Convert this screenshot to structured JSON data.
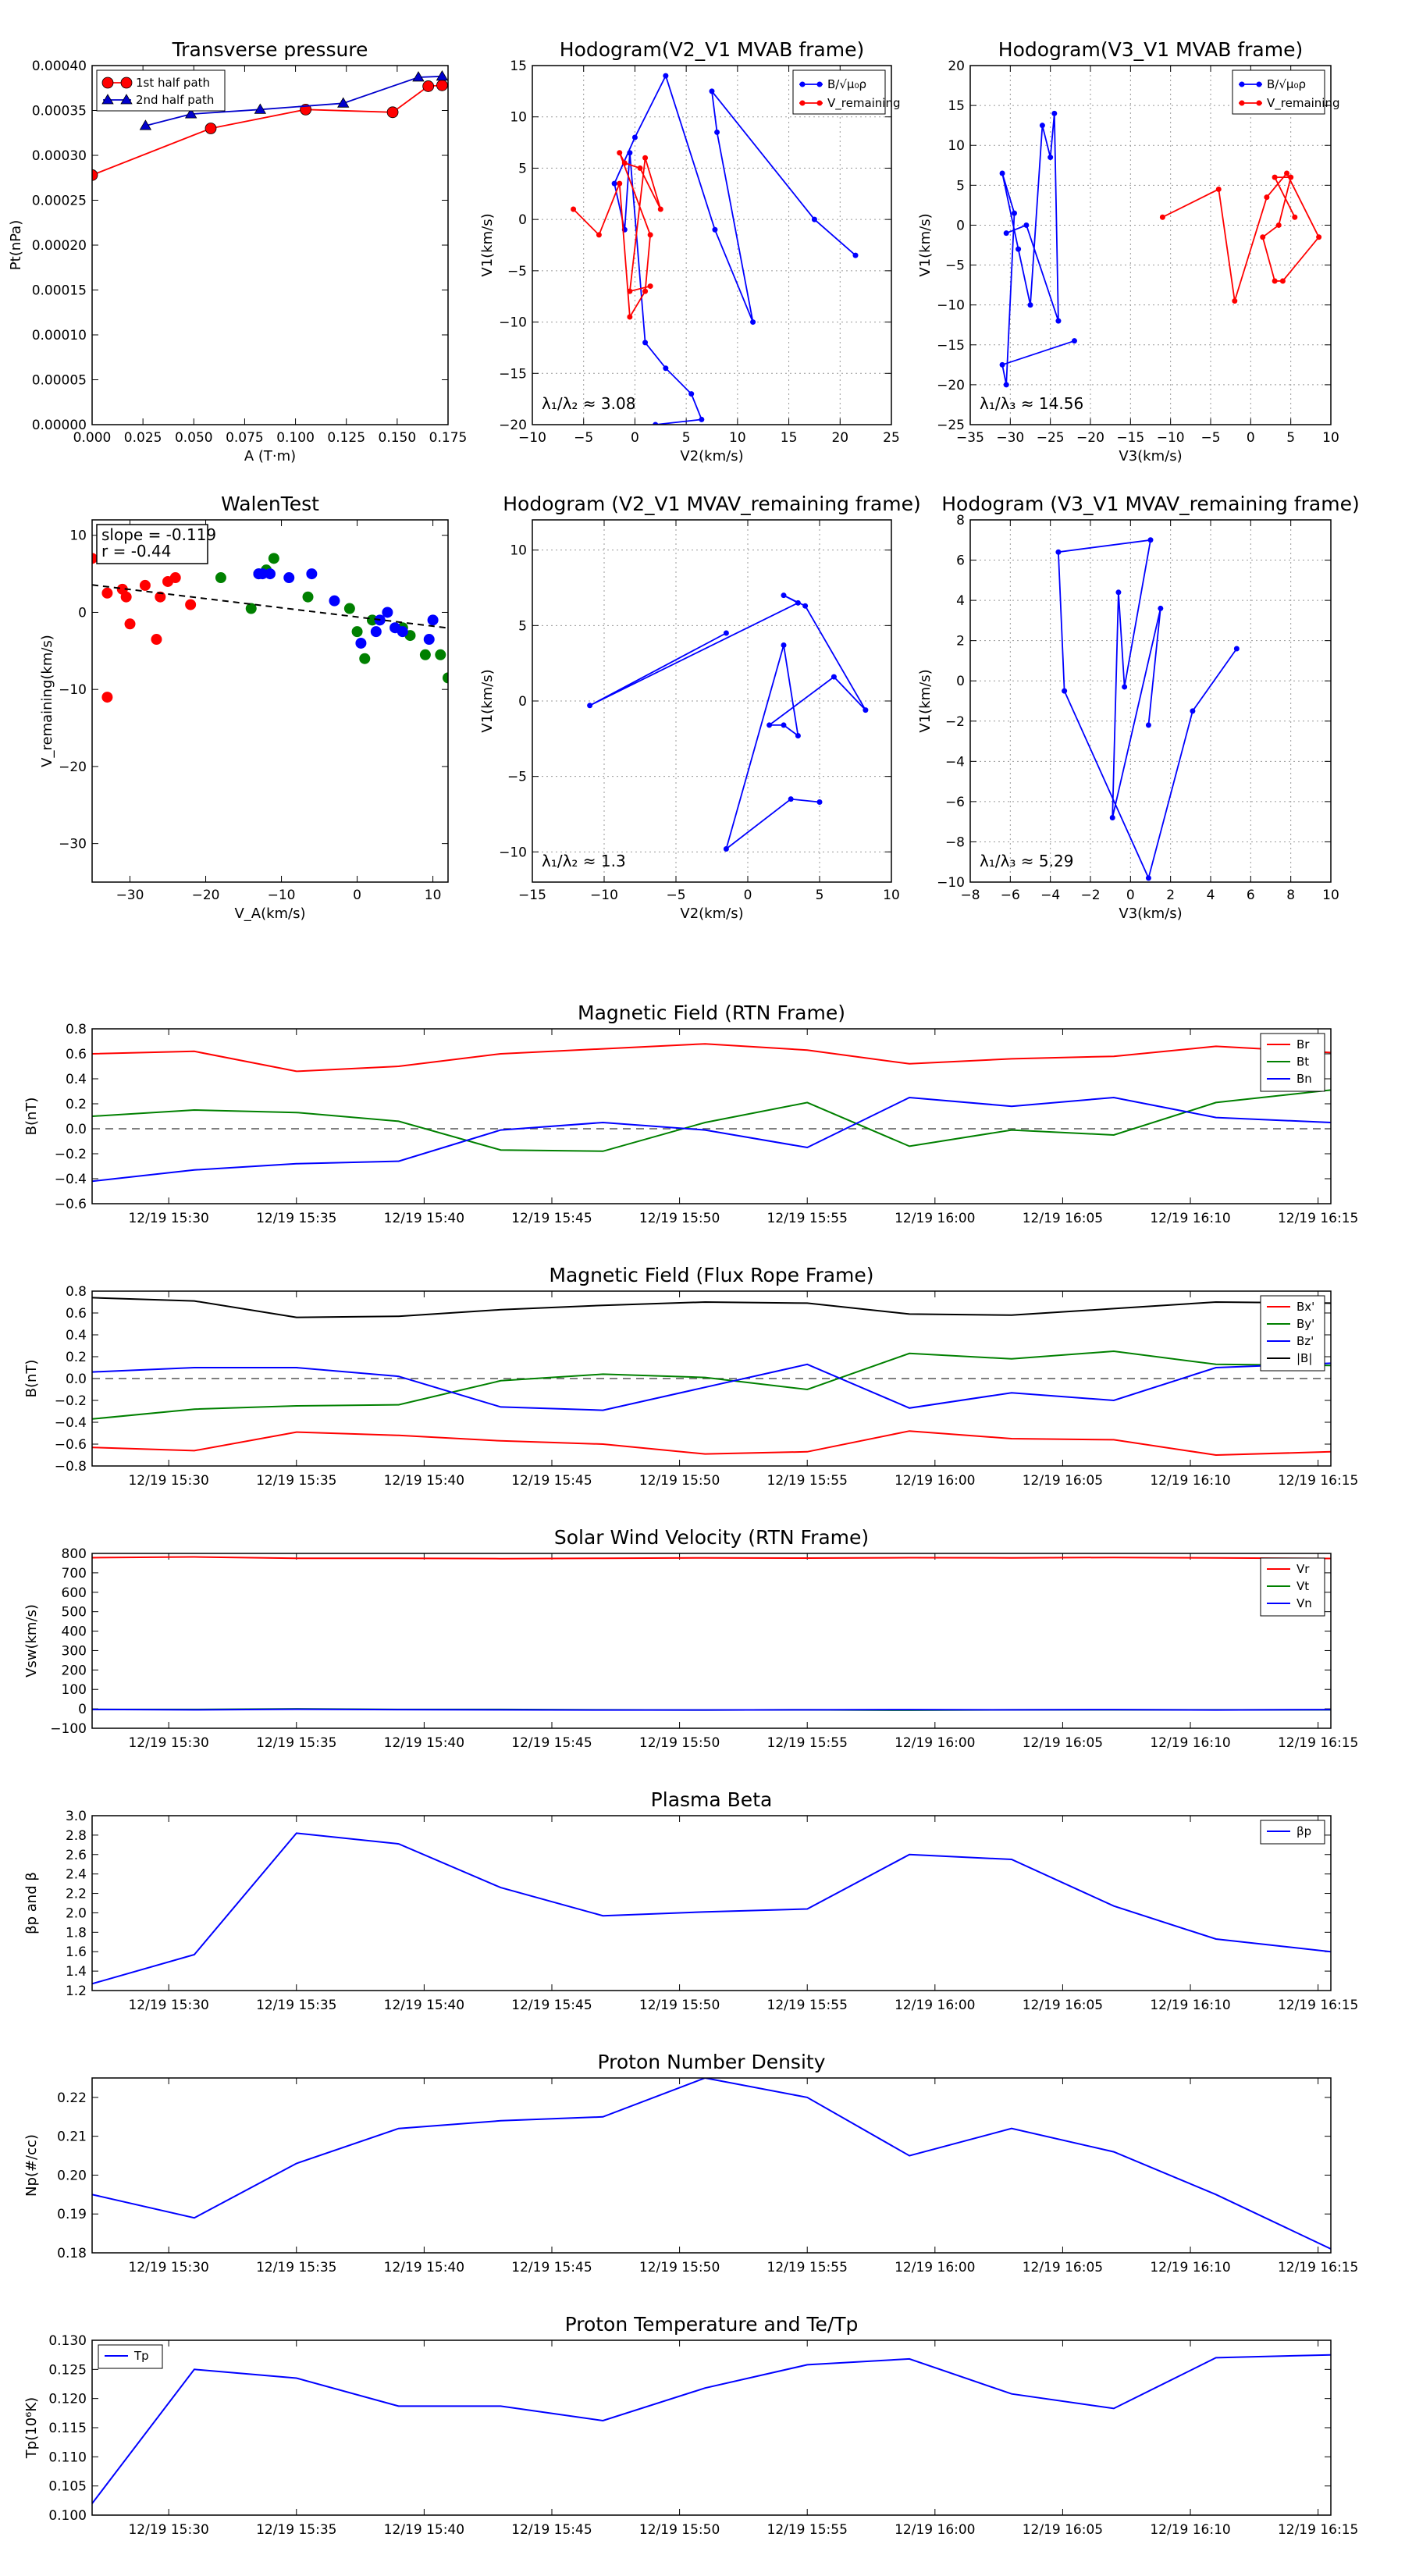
{
  "chart_data": [
    {
      "id": "tp",
      "type": "line",
      "title": "Transverse pressure",
      "xlabel": "A (T·m)",
      "ylabel": "Pt(nPa)",
      "xlim": [
        0.0,
        0.18
      ],
      "ylim": [
        0.0,
        0.0004
      ],
      "xticks": [
        "0.000",
        "0.025",
        "0.050",
        "0.075",
        "0.100",
        "0.125",
        "0.150",
        "0.175"
      ],
      "yticks": [
        "0.00000",
        "0.00005",
        "0.00010",
        "0.00015",
        "0.00020",
        "0.00025",
        "0.00030",
        "0.00035",
        "0.00040"
      ],
      "legend": "top-left",
      "grid": false,
      "series": [
        {
          "name": "1st half path",
          "color": "#ff0000",
          "marker": "circle",
          "x": [
            0.0,
            0.06,
            0.108,
            0.152,
            0.17,
            0.177
          ],
          "y": [
            0.000278,
            0.00033,
            0.000351,
            0.000348,
            0.000377,
            0.000378
          ]
        },
        {
          "name": "2nd half path",
          "color": "#0000cc",
          "marker": "triangle",
          "x": [
            0.027,
            0.05,
            0.085,
            0.127,
            0.165,
            0.177
          ],
          "y": [
            0.000333,
            0.000346,
            0.000351,
            0.000358,
            0.000387,
            0.000388
          ]
        }
      ]
    },
    {
      "id": "h1",
      "type": "line",
      "title": "Hodogram(V2_V1 MVAB frame)",
      "xlabel": "V2(km/s)",
      "ylabel": "V1(km/s)",
      "xlim": [
        -10,
        25
      ],
      "ylim": [
        -20,
        15
      ],
      "xticks": [
        "−10",
        "−5",
        "0",
        "5",
        "10",
        "15",
        "20",
        "25"
      ],
      "yticks": [
        "−20",
        "−15",
        "−10",
        "−5",
        "0",
        "5",
        "10",
        "15"
      ],
      "legend": "top-right",
      "grid": true,
      "annotation": "λ₁/λ₂ ≈ 3.08",
      "series": [
        {
          "name": "B/√μ₀ρ",
          "color": "#0000ff",
          "x": [
            21.5,
            17.5,
            7.5,
            8,
            11.5,
            7.8,
            3,
            0,
            -2,
            -1,
            -0.5,
            1,
            3,
            5.5,
            6.5,
            2
          ],
          "y": [
            -3.5,
            0,
            12.5,
            8.5,
            -10,
            -1,
            14,
            8,
            3.5,
            -1,
            6.5,
            -12,
            -14.5,
            -17,
            -19.5,
            -20
          ]
        },
        {
          "name": "V_remaining",
          "color": "#ff0000",
          "x": [
            -6,
            -3.5,
            -1.5,
            -0.5,
            1,
            1.5,
            -1.5,
            -1,
            0.5,
            2.5,
            1,
            -0.5,
            1.5
          ],
          "y": [
            1,
            -1.5,
            3.5,
            -9.5,
            -7,
            -1.5,
            6.5,
            5.5,
            5,
            1,
            6,
            -7,
            -6.5
          ]
        }
      ]
    },
    {
      "id": "h2",
      "type": "line",
      "title": "Hodogram(V3_V1 MVAB frame)",
      "xlabel": "V3(km/s)",
      "ylabel": "V1(km/s)",
      "xlim": [
        -35,
        10
      ],
      "ylim": [
        -25,
        20
      ],
      "xticks": [
        "−35",
        "−30",
        "−25",
        "−20",
        "−15",
        "−10",
        "−5",
        "0",
        "5",
        "10"
      ],
      "yticks": [
        "−25",
        "−20",
        "−15",
        "−10",
        "−5",
        "0",
        "5",
        "10",
        "15",
        "20"
      ],
      "legend": "top-right",
      "grid": true,
      "annotation": "λ₁/λ₃ ≈ 14.56",
      "series": [
        {
          "name": "B/√μ₀ρ",
          "color": "#0000ff",
          "x": [
            -22,
            -31,
            -30.5,
            -29.5,
            -31,
            -29,
            -27.5,
            -26,
            -25,
            -24.5,
            -24,
            -28,
            -30.5
          ],
          "y": [
            -14.5,
            -17.5,
            -20,
            1.5,
            6.5,
            -3,
            -10,
            12.5,
            8.5,
            14,
            -12,
            0,
            -1
          ]
        },
        {
          "name": "V_remaining",
          "color": "#ff0000",
          "x": [
            -11,
            -4,
            -2,
            2,
            4.5,
            8.5,
            4,
            3,
            1.5,
            3.5,
            5,
            3,
            5.5
          ],
          "y": [
            1,
            4.5,
            -9.5,
            3.5,
            6.5,
            -1.5,
            -7,
            -7,
            -1.5,
            0,
            6,
            6,
            1
          ]
        }
      ]
    },
    {
      "id": "walen",
      "type": "scatter",
      "title": "WalenTest",
      "xlabel": "V_A(km/s)",
      "ylabel": "V_remaining(km/s)",
      "xlim": [
        -35,
        12
      ],
      "ylim": [
        -35,
        12
      ],
      "xticks": [
        "−30",
        "−20",
        "−10",
        "0",
        "10"
      ],
      "xtick_vals": [
        -30,
        -20,
        -10,
        0,
        10
      ],
      "yticks": [
        "−30",
        "−20",
        "−10",
        "0",
        "10"
      ],
      "ytick_vals": [
        -30,
        -20,
        -10,
        0,
        10
      ],
      "grid": false,
      "textbox": [
        "slope = -0.119",
        "r = -0.44"
      ],
      "fit": {
        "slope": -0.119,
        "intercept": -0.6
      },
      "groups": [
        {
          "color": "#ff0000",
          "x": [
            -35,
            -33,
            -31,
            -30.5,
            -28,
            -26.5,
            -26,
            -25,
            -24,
            -22,
            -33,
            -30
          ],
          "y": [
            7,
            2.5,
            3,
            2,
            3.5,
            -3.5,
            2,
            4,
            4.5,
            1,
            -11,
            -1.5
          ]
        },
        {
          "color": "#008000",
          "x": [
            -13,
            -12,
            -11,
            -14,
            -6.5,
            -1,
            0,
            1,
            2,
            6,
            7,
            9,
            11,
            -18,
            12
          ],
          "y": [
            5,
            5.5,
            7,
            0.5,
            2,
            0.5,
            -2.5,
            -6,
            -1,
            -2,
            -3,
            -5.5,
            -5.5,
            4.5,
            -8.5
          ]
        },
        {
          "color": "#0000ff",
          "x": [
            -13,
            -12.5,
            -11.5,
            -9,
            -6,
            -3,
            0.5,
            2.5,
            3,
            4,
            5,
            6,
            9.5,
            10
          ],
          "y": [
            5,
            5,
            5,
            4.5,
            5,
            1.5,
            -4,
            -2.5,
            -1,
            0,
            -2,
            -2.5,
            -3.5,
            -1
          ]
        }
      ]
    },
    {
      "id": "h3",
      "type": "line",
      "title": "Hodogram (V2_V1 MVAV_remaining frame)",
      "xlabel": "V2(km/s)",
      "ylabel": "V1(km/s)",
      "xlim": [
        -15,
        10
      ],
      "ylim": [
        -12,
        12
      ],
      "xticks": [
        "−15",
        "−10",
        "−5",
        "0",
        "5",
        "10"
      ],
      "xtick_vals": [
        -15,
        -10,
        -5,
        0,
        5,
        10
      ],
      "yticks": [
        "−10",
        "−5",
        "0",
        "5",
        "10"
      ],
      "ytick_vals": [
        -10,
        -5,
        0,
        5,
        10
      ],
      "grid": true,
      "annotation": "λ₁/λ₂ ≈ 1.3",
      "series": [
        {
          "color": "#0000ff",
          "x": [
            -1.5,
            -11,
            3.5,
            2.5,
            4.0,
            8.2,
            6,
            1.5,
            2.5,
            3.5,
            2.5,
            -1.5,
            3.0,
            5.0
          ],
          "y": [
            4.5,
            -0.3,
            6.5,
            7.0,
            6.3,
            -0.6,
            1.6,
            -1.6,
            -1.6,
            -2.3,
            3.7,
            -9.8,
            -6.5,
            -6.7
          ]
        }
      ]
    },
    {
      "id": "h4",
      "type": "line",
      "title": "Hodogram (V3_V1 MVAV_remaining frame)",
      "xlabel": "V3(km/s)",
      "ylabel": "V1(km/s)",
      "xlim": [
        -8,
        10
      ],
      "ylim": [
        -10,
        8
      ],
      "xticks": [
        "−8",
        "−6",
        "−4",
        "−2",
        "0",
        "2",
        "4",
        "6",
        "8",
        "10"
      ],
      "xtick_vals": [
        -8,
        -6,
        -4,
        -2,
        0,
        2,
        4,
        6,
        8,
        10
      ],
      "yticks": [
        "−10",
        "−8",
        "−6",
        "−4",
        "−2",
        "0",
        "2",
        "4",
        "6",
        "8"
      ],
      "ytick_vals": [
        -10,
        -8,
        -6,
        -4,
        -2,
        0,
        2,
        4,
        6,
        8
      ],
      "grid": true,
      "annotation": "λ₁/λ₃ ≈ 5.29",
      "series": [
        {
          "color": "#0000ff",
          "x": [
            5.3,
            3.1,
            0.9,
            -3.3,
            -3.6,
            1.0,
            -0.3,
            -0.6,
            -0.9,
            1.5,
            0.9
          ],
          "y": [
            1.6,
            -1.5,
            -9.8,
            -0.5,
            6.4,
            7.0,
            -0.3,
            4.4,
            -6.8,
            3.6,
            -2.2
          ]
        }
      ]
    }
  ],
  "time_axis": {
    "ticks": [
      "12/19 15:30",
      "12/19 15:35",
      "12/19 15:40",
      "12/19 15:45",
      "12/19 15:50",
      "12/19 15:55",
      "12/19 16:00",
      "12/19 16:05",
      "12/19 16:10",
      "12/19 16:15"
    ],
    "tick_minutes": [
      3,
      8,
      13,
      18,
      23,
      28,
      33,
      38,
      43,
      48
    ],
    "sample_minutes": [
      0,
      4,
      8,
      12,
      16,
      20,
      24,
      28,
      32,
      36,
      40,
      44,
      48.5
    ],
    "range_minutes": [
      0,
      48.5
    ],
    "origin_label": "12/19 15:27"
  },
  "time_charts": [
    {
      "id": "brtn",
      "title": "Magnetic Field (RTN Frame)",
      "ylabel": "B(nT)",
      "ylim": [
        -0.6,
        0.8
      ],
      "yticks": [
        -0.6,
        -0.4,
        -0.2,
        0.0,
        0.2,
        0.4,
        0.6,
        0.8
      ],
      "ytick_labels": [
        "−0.6",
        "−0.4",
        "−0.2",
        "0.0",
        "0.2",
        "0.4",
        "0.6",
        "0.8"
      ],
      "zero_line": true,
      "legend": "top-right",
      "series": [
        {
          "name": "Br",
          "color": "#ff0000",
          "values": [
            0.6,
            0.62,
            0.46,
            0.5,
            0.6,
            0.64,
            0.68,
            0.63,
            0.52,
            0.56,
            0.58,
            0.66,
            0.61
          ]
        },
        {
          "name": "Bt",
          "color": "#008000",
          "values": [
            0.1,
            0.15,
            0.13,
            0.06,
            -0.17,
            -0.18,
            0.05,
            0.21,
            -0.14,
            -0.01,
            -0.05,
            0.21,
            0.31
          ]
        },
        {
          "name": "Bn",
          "color": "#0000ff",
          "values": [
            -0.42,
            -0.33,
            -0.28,
            -0.26,
            -0.01,
            0.05,
            -0.01,
            -0.15,
            0.25,
            0.18,
            0.25,
            0.09,
            0.05
          ]
        }
      ]
    },
    {
      "id": "bfr",
      "title": "Magnetic Field (Flux Rope Frame)",
      "ylabel": "B(nT)",
      "ylim": [
        -0.8,
        0.8
      ],
      "yticks": [
        -0.8,
        -0.6,
        -0.4,
        -0.2,
        0.0,
        0.2,
        0.4,
        0.6,
        0.8
      ],
      "ytick_labels": [
        "−0.8",
        "−0.6",
        "−0.4",
        "−0.2",
        "0.0",
        "0.2",
        "0.4",
        "0.6",
        "0.8"
      ],
      "zero_line": true,
      "legend": "top-right",
      "series": [
        {
          "name": "Bx'",
          "color": "#ff0000",
          "values": [
            -0.63,
            -0.66,
            -0.49,
            -0.52,
            -0.57,
            -0.6,
            -0.69,
            -0.67,
            -0.48,
            -0.55,
            -0.56,
            -0.7,
            -0.67
          ]
        },
        {
          "name": "By'",
          "color": "#008000",
          "values": [
            -0.37,
            -0.28,
            -0.25,
            -0.24,
            -0.02,
            0.04,
            0.01,
            -0.1,
            0.23,
            0.18,
            0.25,
            0.13,
            0.12
          ]
        },
        {
          "name": "Bz'",
          "color": "#0000ff",
          "values": [
            0.06,
            0.1,
            0.1,
            0.02,
            -0.26,
            -0.29,
            -0.08,
            0.13,
            -0.27,
            -0.13,
            -0.2,
            0.1,
            0.14
          ]
        },
        {
          "name": "|B|",
          "color": "#000000",
          "values": [
            0.74,
            0.71,
            0.56,
            0.57,
            0.63,
            0.67,
            0.7,
            0.69,
            0.59,
            0.58,
            0.64,
            0.7,
            0.69
          ]
        }
      ]
    },
    {
      "id": "vsw",
      "title": "Solar Wind Velocity (RTN Frame)",
      "ylabel": "Vsw(km/s)",
      "ylim": [
        -100,
        800
      ],
      "yticks": [
        -100,
        0,
        100,
        200,
        300,
        400,
        500,
        600,
        700,
        800
      ],
      "ytick_labels": [
        "−100",
        "0",
        "100",
        "200",
        "300",
        "400",
        "500",
        "600",
        "700",
        "800"
      ],
      "zero_line": false,
      "legend": "top-right",
      "series": [
        {
          "name": "Vr",
          "color": "#ff0000",
          "values": [
            778,
            782,
            775,
            775,
            773,
            775,
            777,
            776,
            778,
            777,
            779,
            777,
            774
          ]
        },
        {
          "name": "Vt",
          "color": "#008000",
          "values": [
            -3,
            -3,
            0,
            -3,
            -3,
            -5,
            -6,
            -5,
            -7,
            -5,
            -5,
            -5,
            -5
          ]
        },
        {
          "name": "Vn",
          "color": "#0000ff",
          "values": [
            -3,
            -5,
            -2,
            -4,
            -5,
            -6,
            -6,
            -5,
            -4,
            -5,
            -4,
            -6,
            -4
          ]
        }
      ]
    },
    {
      "id": "beta",
      "title": "Plasma Beta",
      "ylabel": "βp and β",
      "ylim": [
        1.2,
        3.0
      ],
      "yticks": [
        1.2,
        1.4,
        1.6,
        1.8,
        2.0,
        2.2,
        2.4,
        2.6,
        2.8,
        3.0
      ],
      "ytick_labels": [
        "1.2",
        "1.4",
        "1.6",
        "1.8",
        "2.0",
        "2.2",
        "2.4",
        "2.6",
        "2.8",
        "3.0"
      ],
      "zero_line": false,
      "legend": "top-right",
      "series": [
        {
          "name": "βp",
          "color": "#0000ff",
          "values": [
            1.27,
            1.57,
            2.82,
            2.71,
            2.26,
            1.97,
            2.01,
            2.04,
            2.6,
            2.55,
            2.07,
            1.73,
            1.6
          ]
        }
      ]
    },
    {
      "id": "np",
      "title": "Proton Number Density",
      "ylabel": "Np(#/cc)",
      "ylim": [
        0.18,
        0.225
      ],
      "yticks": [
        0.18,
        0.19,
        0.2,
        0.21,
        0.22
      ],
      "ytick_labels": [
        "0.18",
        "0.19",
        "0.20",
        "0.21",
        "0.22"
      ],
      "zero_line": false,
      "legend": "none",
      "series": [
        {
          "name": "Np",
          "color": "#0000ff",
          "values": [
            0.195,
            0.189,
            0.203,
            0.212,
            0.214,
            0.215,
            0.225,
            0.22,
            0.205,
            0.212,
            0.206,
            0.195,
            0.181
          ]
        }
      ]
    },
    {
      "id": "tp2",
      "title": "Proton Temperature and Te/Tp",
      "ylabel": "Tp(10⁶K)",
      "ylim": [
        0.1,
        0.13
      ],
      "yticks": [
        0.1,
        0.105,
        0.11,
        0.115,
        0.12,
        0.125,
        0.13
      ],
      "ytick_labels": [
        "0.100",
        "0.105",
        "0.110",
        "0.115",
        "0.120",
        "0.125",
        "0.130"
      ],
      "zero_line": false,
      "legend": "top-left",
      "series": [
        {
          "name": "Tp",
          "color": "#0000ff",
          "values": [
            0.102,
            0.125,
            0.1235,
            0.1187,
            0.1187,
            0.1162,
            0.1218,
            0.1258,
            0.1268,
            0.1208,
            0.1183,
            0.127,
            0.1275
          ]
        }
      ]
    }
  ]
}
